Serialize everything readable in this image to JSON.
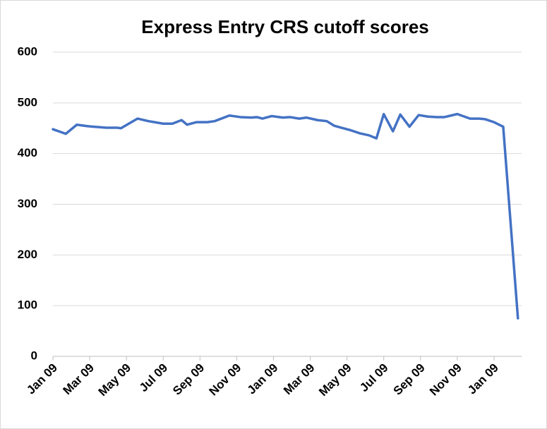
{
  "chart_data": {
    "type": "line",
    "title": "Express Entry CRS cutoff scores",
    "x": [
      0,
      0.7,
      1.3,
      1.9,
      2.9,
      3.5,
      3.7,
      4.6,
      5.2,
      6.0,
      6.5,
      7.0,
      7.3,
      7.8,
      8.4,
      8.8,
      9.6,
      10.2,
      10.8,
      11.1,
      11.4,
      11.9,
      12.5,
      12.9,
      13.4,
      13.8,
      14.4,
      14.9,
      15.3,
      15.7,
      16.2,
      16.7,
      17.2,
      17.6,
      18.0,
      18.5,
      18.9,
      19.4,
      19.9,
      20.4,
      20.9,
      21.3,
      22.0,
      22.7,
      23.2,
      23.5,
      24.0,
      24.5,
      25.3
    ],
    "series": [
      {
        "color": "#4472c4",
        "values": [
          448,
          439,
          457,
          454,
          451,
          451,
          450,
          469,
          464,
          459,
          459,
          466,
          457,
          462,
          462,
          464,
          475,
          472,
          471,
          472,
          469,
          474,
          471,
          472,
          469,
          471,
          466,
          464,
          455,
          451,
          446,
          440,
          436,
          430,
          478,
          444,
          477,
          453,
          476,
          473,
          472,
          472,
          478,
          469,
          469,
          468,
          462,
          453,
          75
        ]
      }
    ],
    "xlim": [
      0,
      25.5
    ],
    "xticks": [
      {
        "value": 0,
        "label": "Jan 09"
      },
      {
        "value": 2,
        "label": "Mar 09"
      },
      {
        "value": 4,
        "label": "May 09"
      },
      {
        "value": 6,
        "label": "Jul 09"
      },
      {
        "value": 8,
        "label": "Sep 09"
      },
      {
        "value": 10,
        "label": "Nov 09"
      },
      {
        "value": 12,
        "label": "Jan 09"
      },
      {
        "value": 14,
        "label": "Mar 09"
      },
      {
        "value": 16,
        "label": "May 09"
      },
      {
        "value": 18,
        "label": "Jul 09"
      },
      {
        "value": 20,
        "label": "Sep 09"
      },
      {
        "value": 22,
        "label": "Nov 09"
      },
      {
        "value": 24,
        "label": "Jan 09"
      }
    ],
    "ylim": [
      0,
      600
    ],
    "yticks": [
      0,
      100,
      200,
      300,
      400,
      500,
      600
    ],
    "grid": true
  }
}
